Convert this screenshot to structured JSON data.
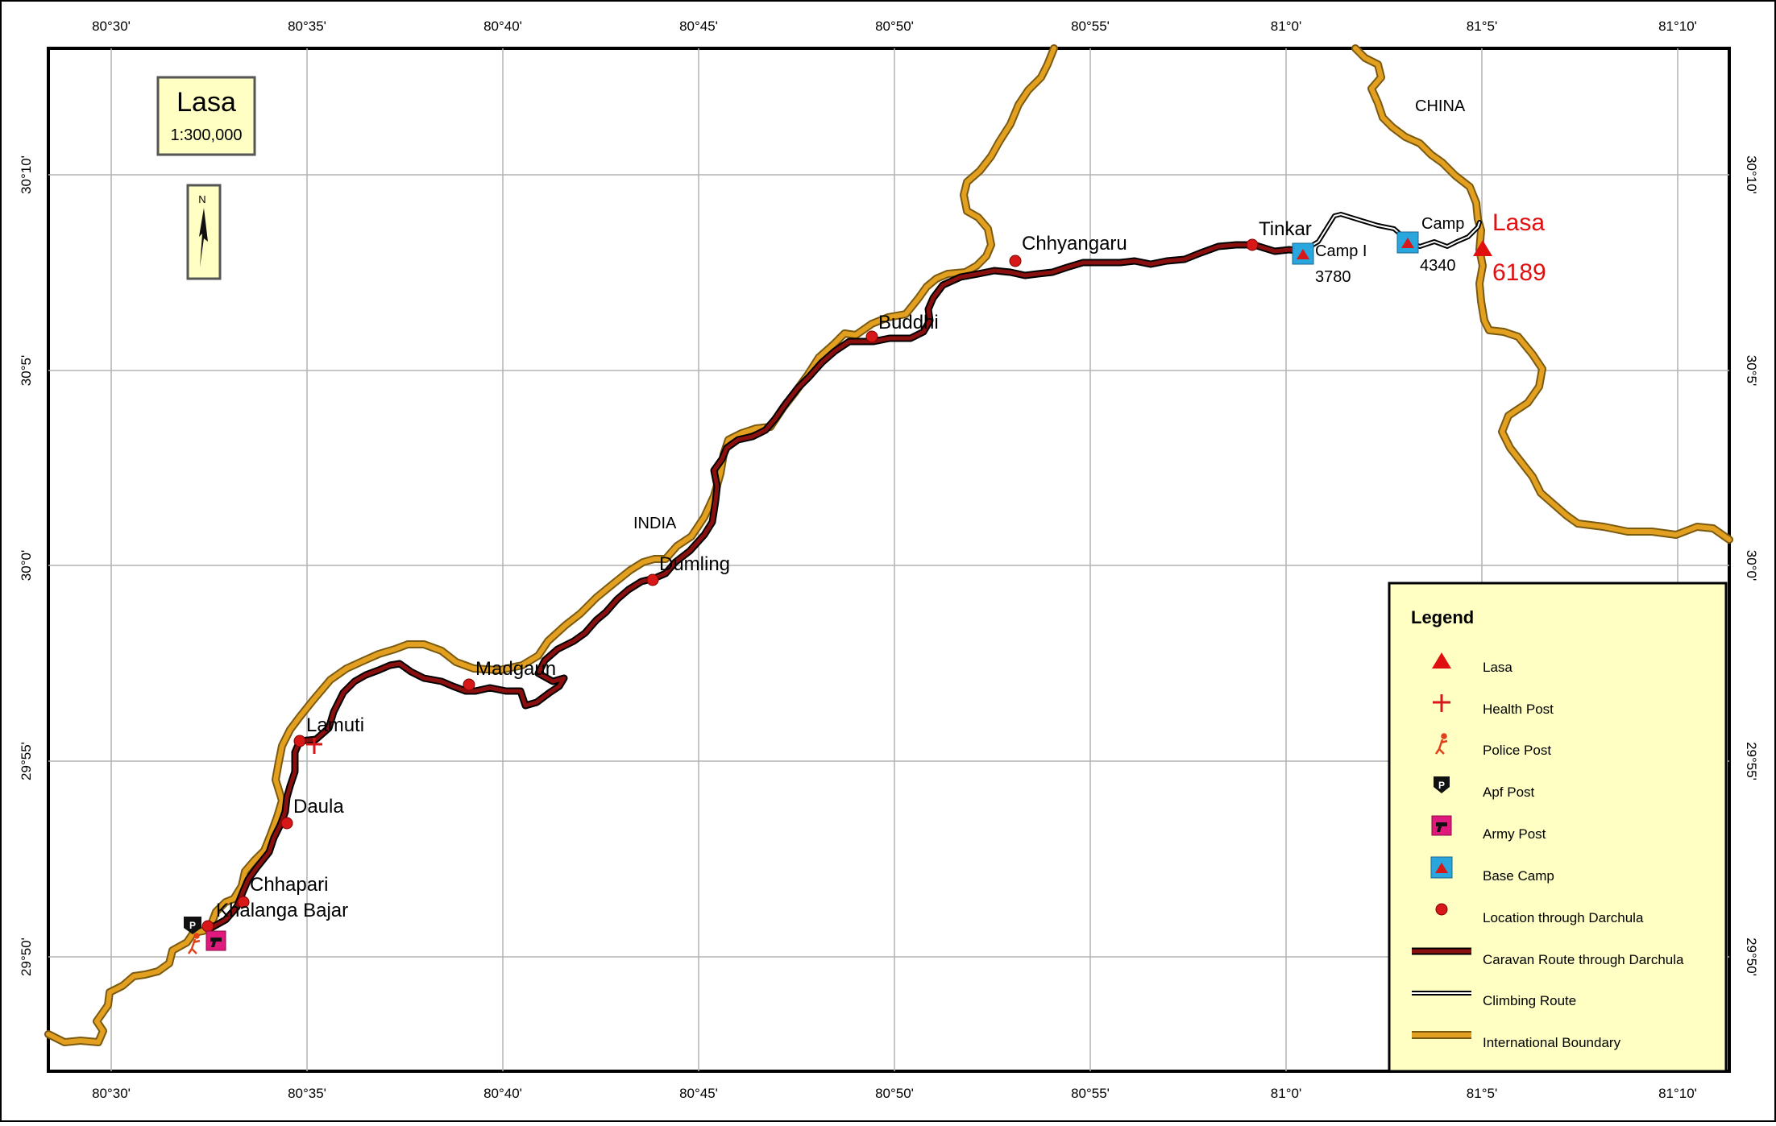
{
  "title_box": {
    "name": "Lasa",
    "scale": "1:300,000"
  },
  "north_arrow": {
    "label": "N"
  },
  "longitude_labels": [
    "80°30'",
    "80°35'",
    "80°40'",
    "80°45'",
    "80°50'",
    "80°55'",
    "81°0'",
    "81°5'",
    "81°10'"
  ],
  "latitude_labels": [
    "30°10'",
    "30°5'",
    "30°0'",
    "29°55'",
    "29°50'"
  ],
  "countries": {
    "china": "CHINA",
    "india": "INDIA"
  },
  "places": [
    "Chhyangaru",
    "Buddhi",
    "Dumling",
    "Madgaun",
    "Lamuti",
    "Daula",
    "Chhapari",
    "Khalanga Bajar",
    "Tinkar"
  ],
  "camps": {
    "camp1_label": "Camp I",
    "camp1_elev": "3780",
    "camp2_label": "Camp",
    "camp2_elev": "4340"
  },
  "peak": {
    "name": "Lasa",
    "elevation": "6189"
  },
  "legend": {
    "title": "Legend",
    "items": [
      "Lasa",
      "Health Post",
      "Police Post",
      "Apf Post",
      "Army Post",
      "Base Camp",
      "Location through Darchula",
      "Caravan Route through Darchula",
      "Climbing Route",
      "International Boundary"
    ]
  },
  "colors": {
    "boundary": "#e3a020",
    "caravan": "#8a1010",
    "marker": "#d81818",
    "peak": "#e01010",
    "basecamp": "#2aa6df",
    "army": "#e0197d",
    "box_fill": "#ffffc4",
    "grid": "#b4b4b4"
  }
}
